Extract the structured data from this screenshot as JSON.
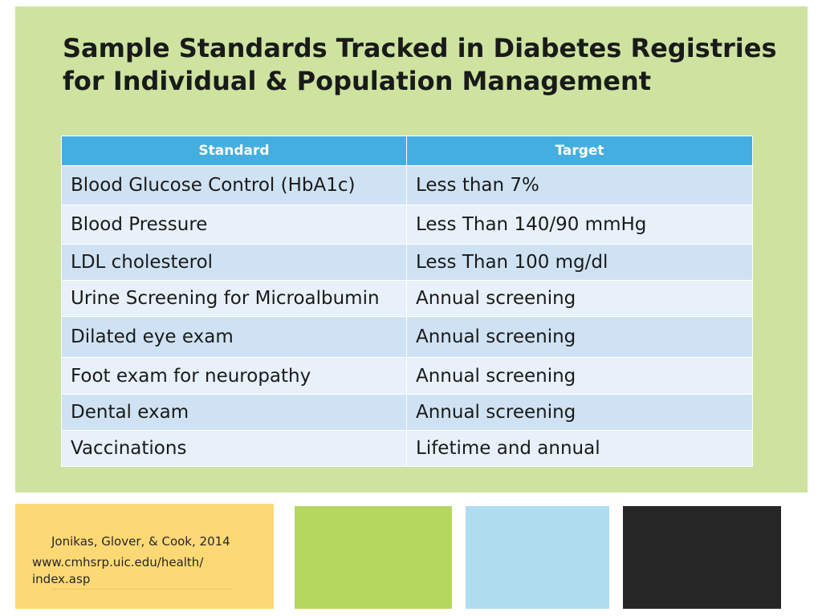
{
  "slide": {
    "title_line1": "Sample Standards Tracked in Diabetes Registries",
    "title_line2": "for Individual & Population Management"
  },
  "table": {
    "headers": [
      "Standard",
      "Target"
    ],
    "rows": [
      [
        "Blood Glucose Control (HbA1c)",
        "Less than 7%"
      ],
      [
        "Blood Pressure",
        "Less Than 140/90 mmHg"
      ],
      [
        "LDL cholesterol",
        "Less Than 100 mg/dl"
      ],
      [
        "Urine Screening for Microalbumin",
        "Annual screening"
      ],
      [
        "Dilated eye exam",
        "Annual screening"
      ],
      [
        "Foot exam for neuropathy",
        "Annual screening"
      ],
      [
        "Dental exam",
        "Annual screening"
      ],
      [
        "Vaccinations",
        "Lifetime and annual"
      ]
    ]
  },
  "footer": {
    "citation": "Jonikas, Glover, & Cook, 2014",
    "url_line1": "www.cmhsrp.uic.edu/health/",
    "url_line2": "index.asp"
  },
  "colors": {
    "panel_green": "#cde39f",
    "header_blue": "#44aee0",
    "box_yellow": "#fdd976",
    "box_green": "#b5d65f",
    "box_blue": "#b0dcf0",
    "box_black": "#262626"
  }
}
